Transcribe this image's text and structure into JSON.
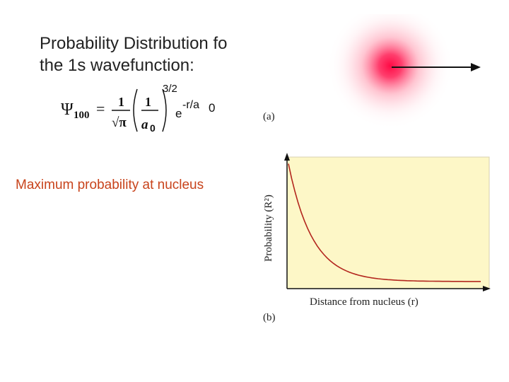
{
  "slide": {
    "title_line1": "Probability Distribution fo",
    "title_line2": "the 1s wavefunction:",
    "maximum_note": "Maximum probability at nucleus",
    "accent_color": "#c8431b"
  },
  "formula": {
    "psi": "Ψ",
    "subscript": "100",
    "equals": "=",
    "numerator1": "1",
    "denominator1": "√π",
    "numerator2": "1",
    "denominator2_var": "a",
    "denominator2_sub": "0",
    "exponent": "3/2",
    "exp_base": "e",
    "exp_power": "-r/a",
    "exp_power_sub": "0"
  },
  "figure_a": {
    "label": "(a)",
    "glow_color": "#ff0040",
    "arrow_icon": "right-arrow-icon"
  },
  "figure_b": {
    "label": "(b)",
    "plot_background": "#fdf7c7",
    "curve_color": "#b3261e",
    "axis_icon": "arrow-head-icon"
  },
  "chart_data": {
    "type": "line",
    "title": "",
    "xlabel": "Distance from nucleus (r)",
    "ylabel": "Probability (R²)",
    "grid": false,
    "series": [
      {
        "values_shape": "exponential decay",
        "x": [
          0,
          0.5,
          1,
          1.5,
          2,
          2.5,
          3,
          3.5,
          4
        ],
        "y": [
          1.0,
          0.37,
          0.14,
          0.05,
          0.02,
          0.01,
          0.005,
          0.002,
          0.001
        ]
      }
    ]
  }
}
